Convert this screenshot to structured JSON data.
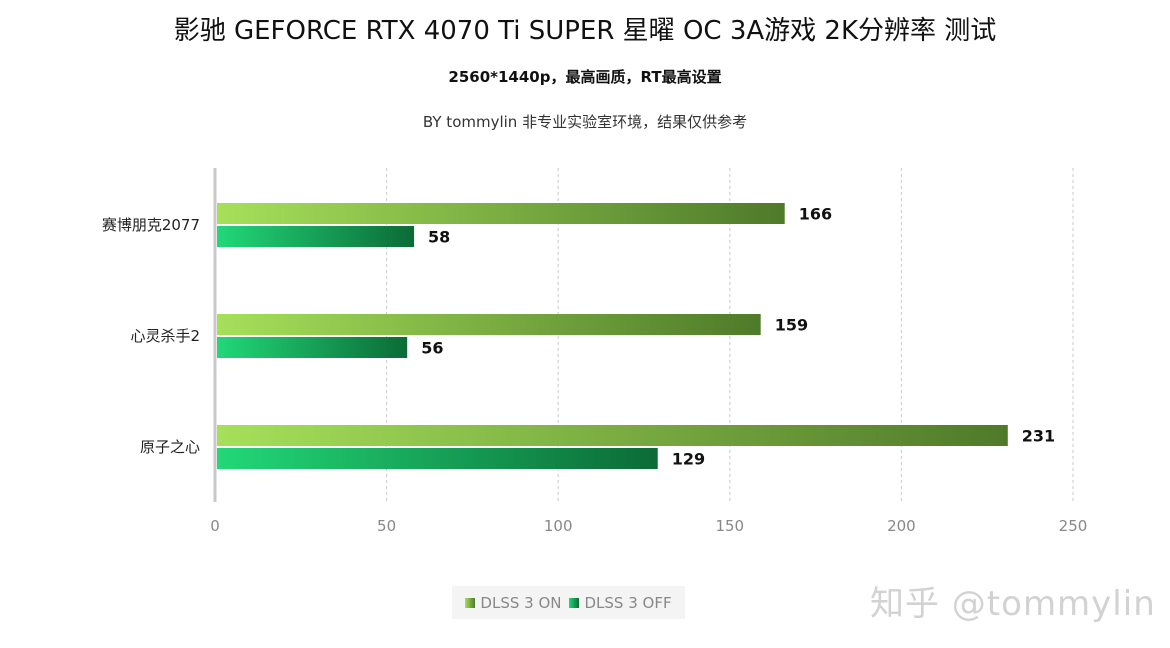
{
  "header": {
    "title": "影驰 GEFORCE RTX 4070 Ti SUPER 星曜 OC 3A游戏 2K分辨率 测试",
    "subtitle": "2560*1440p，最高画质，RT最高设置",
    "byline": "BY tommylin 非专业实验室环境，结果仅供参考"
  },
  "watermark": "知乎 @tommylin",
  "colors": {
    "on_start": "#a6e05a",
    "on_end": "#4f7a2a",
    "off_start": "#22d878",
    "off_end": "#0b6b36",
    "grid": "#c8c8c8",
    "axis": "#c8c8c8"
  },
  "chart_data": {
    "type": "bar",
    "orientation": "horizontal",
    "title": "影驰 GEFORCE RTX 4070 Ti SUPER 星曜 OC 3A游戏 2K分辨率 测试",
    "categories": [
      "赛博朋克2077",
      "心灵杀手2",
      "原子之心"
    ],
    "series": [
      {
        "name": "DLSS 3 ON",
        "values": [
          166,
          159,
          231
        ]
      },
      {
        "name": "DLSS 3 OFF",
        "values": [
          58,
          56,
          129
        ]
      }
    ],
    "xlim": [
      0,
      250
    ],
    "xticks": [
      0,
      50,
      100,
      150,
      200,
      250
    ],
    "grid": true,
    "legend": "bottom-center"
  }
}
